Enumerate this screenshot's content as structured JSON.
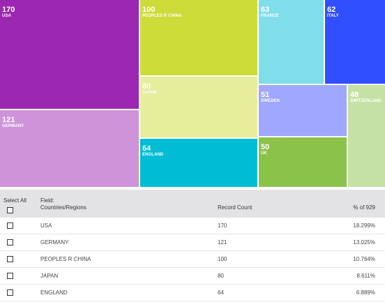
{
  "treemap": {
    "tiles": [
      {
        "value": "170",
        "label": "USA",
        "color": "#9c27b0"
      },
      {
        "value": "121",
        "label": "GERMANY",
        "color": "#ce93d8"
      },
      {
        "value": "100",
        "label": "PEOPLES R CHINA",
        "color": "#cddc39"
      },
      {
        "value": "80",
        "label": "JAPAN",
        "color": "#e6ee9c"
      },
      {
        "value": "64",
        "label": "ENGLAND",
        "color": "#00bcd4"
      },
      {
        "value": "63",
        "label": "FRANCE",
        "color": "#80deea"
      },
      {
        "value": "62",
        "label": "ITALY",
        "color": "#304ffe"
      },
      {
        "value": "51",
        "label": "SWEDEN",
        "color": "#9fa8fe"
      },
      {
        "value": "50",
        "label": "UK",
        "color": "#8bc34a"
      },
      {
        "value": "48",
        "label": "SWITZERLAND",
        "color": "#c5e1a5"
      }
    ]
  },
  "table": {
    "select_all_label": "Select All",
    "field_label": "Field:",
    "field_name": "Countries/Regions",
    "count_header": "Record Count",
    "percent_header": "% of 929",
    "rows": [
      {
        "name": "USA",
        "count": "170",
        "percent": "18.299%"
      },
      {
        "name": "GERMANY",
        "count": "121",
        "percent": "13.025%"
      },
      {
        "name": "PEOPLES R CHINA",
        "count": "100",
        "percent": "10.764%"
      },
      {
        "name": "JAPAN",
        "count": "80",
        "percent": "8.611%"
      },
      {
        "name": "ENGLAND",
        "count": "64",
        "percent": "6.889%"
      }
    ]
  }
}
